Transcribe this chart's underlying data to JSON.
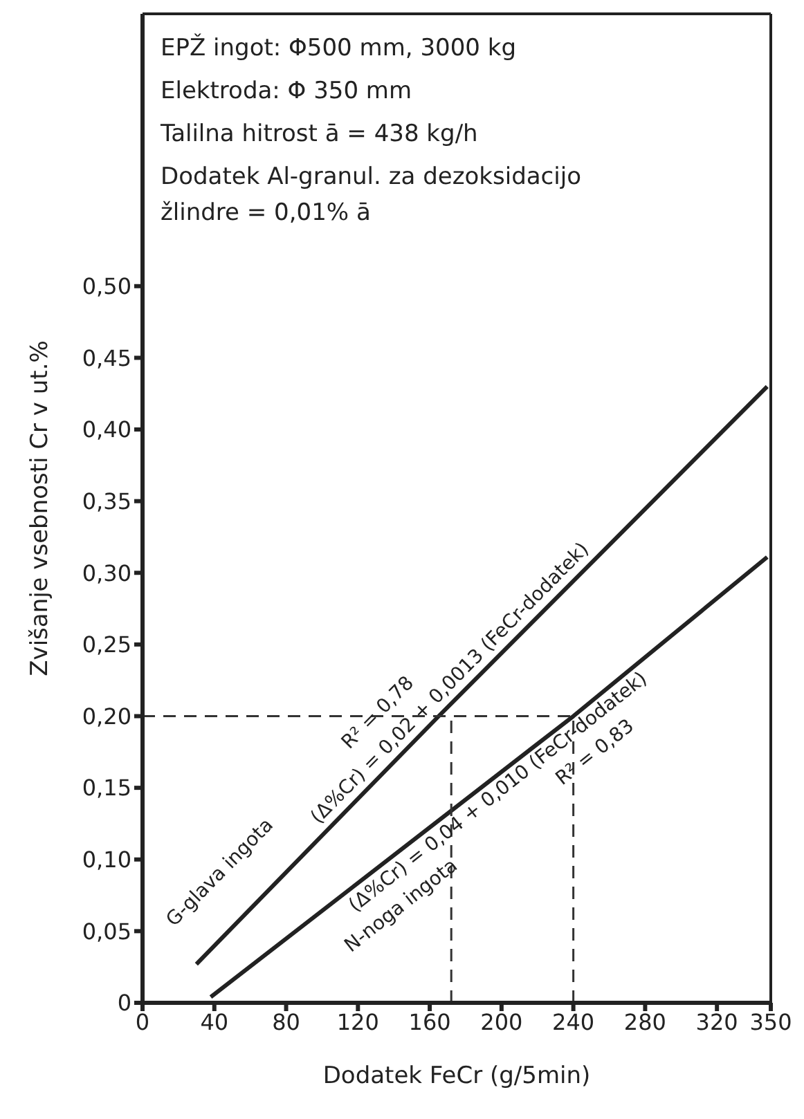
{
  "chart_data": {
    "type": "line",
    "xlabel": "Dodatek FeCr (g/5min)",
    "ylabel": "Zvišanje vsebnosti Cr v ut.%",
    "xlim": [
      0,
      350
    ],
    "xticks": [
      0,
      40,
      80,
      120,
      160,
      200,
      240,
      280,
      320,
      350
    ],
    "ylim": [
      0,
      0.69
    ],
    "yticks": [
      0,
      {
        "value": 0.05,
        "label": "0,05"
      },
      {
        "value": 0.1,
        "label": "0,10"
      },
      {
        "value": 0.15,
        "label": "0,15"
      },
      {
        "value": 0.2,
        "label": "0,20"
      },
      {
        "value": 0.25,
        "label": "0,25"
      },
      {
        "value": 0.3,
        "label": "0,30"
      },
      {
        "value": 0.35,
        "label": "0,35"
      },
      {
        "value": 0.4,
        "label": "0,40"
      },
      {
        "value": 0.45,
        "label": "0,45"
      },
      {
        "value": 0.5,
        "label": "0,50"
      }
    ],
    "series": [
      {
        "color": "#222222",
        "x": [
          30,
          165,
          348
        ],
        "values": [
          0.027,
          0.2,
          0.43
        ]
      },
      {
        "color": "#222222",
        "x": [
          38,
          240,
          348
        ],
        "values": [
          0.004,
          0.2,
          0.311
        ]
      },
      {
        "color": "#333333",
        "line_style": "dashed",
        "x": [
          0,
          240
        ],
        "values": [
          0.2,
          0.2
        ]
      },
      {
        "color": "#333333",
        "line_style": "dashed",
        "x": [
          172,
          172
        ],
        "values": [
          0,
          0.2
        ]
      },
      {
        "color": "#333333",
        "line_style": "dashed",
        "x": [
          240,
          240
        ],
        "values": [
          0,
          0.2
        ]
      }
    ],
    "annotations": [
      "EPŽ ingot: Φ500 mm, 3000 kg",
      "Elektroda: Φ 350 mm",
      "Talilna hitrost ā = 438 kg/h",
      "Dodatek Al-granul. za dezoksidacijo",
      "žlindre = 0,01% ā",
      "G-glava ingota",
      "(Δ%Cr) = 0,02 + 0,0013 (FeCr-dodatek)",
      "R² = 0,78",
      "(Δ%Cr) = 0,04 + 0,010 (FeCr-dodatek)",
      "N-noga ingota",
      "R² = 0,83"
    ]
  }
}
